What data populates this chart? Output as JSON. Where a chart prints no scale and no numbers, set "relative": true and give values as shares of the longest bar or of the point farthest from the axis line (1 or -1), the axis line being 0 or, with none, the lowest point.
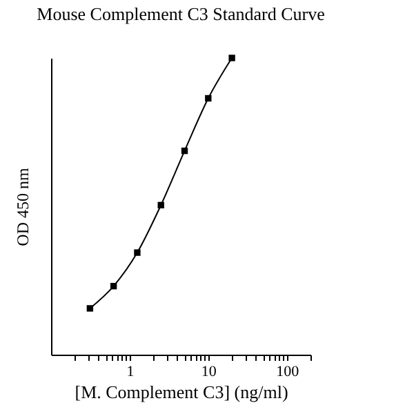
{
  "chart_data": {
    "type": "line",
    "title": "Mouse Complement C3 Standard Curve",
    "xlabel": "[M. Complement C3] (ng/ml)",
    "ylabel": "OD 450 nm",
    "log": "x",
    "relative": true,
    "x": [
      0.3125,
      0.625,
      1.25,
      2.5,
      5,
      10,
      20
    ],
    "series": [
      {
        "color": "#000000",
        "values": [
          0.156,
          0.231,
          0.344,
          0.504,
          0.687,
          0.864,
          1
        ]
      }
    ],
    "xlim": [
      0.1,
      200
    ],
    "xticks": [
      {
        "value": 0.2,
        "label": null
      },
      {
        "value": 0.3,
        "label": null
      },
      {
        "value": 0.4,
        "label": null
      },
      {
        "value": 0.5,
        "label": null
      },
      {
        "value": 0.6,
        "label": null
      },
      {
        "value": 0.7,
        "label": null
      },
      {
        "value": 0.8,
        "label": null
      },
      {
        "value": 0.9,
        "label": null
      },
      1,
      {
        "value": 2,
        "label": null
      },
      {
        "value": 3,
        "label": null
      },
      {
        "value": 4,
        "label": null
      },
      {
        "value": 5,
        "label": null
      },
      {
        "value": 6,
        "label": null
      },
      {
        "value": 7,
        "label": null
      },
      {
        "value": 8,
        "label": null
      },
      {
        "value": 9,
        "label": null
      },
      10,
      {
        "value": 20,
        "label": null
      },
      {
        "value": 30,
        "label": null
      },
      {
        "value": 40,
        "label": null
      },
      {
        "value": 50,
        "label": null
      },
      {
        "value": 60,
        "label": null
      },
      {
        "value": 70,
        "label": null
      },
      {
        "value": 80,
        "label": null
      },
      {
        "value": 90,
        "label": null
      },
      100,
      {
        "value": 200,
        "label": null
      }
    ],
    "grid": false,
    "marker": "square",
    "line_style": "solid"
  }
}
